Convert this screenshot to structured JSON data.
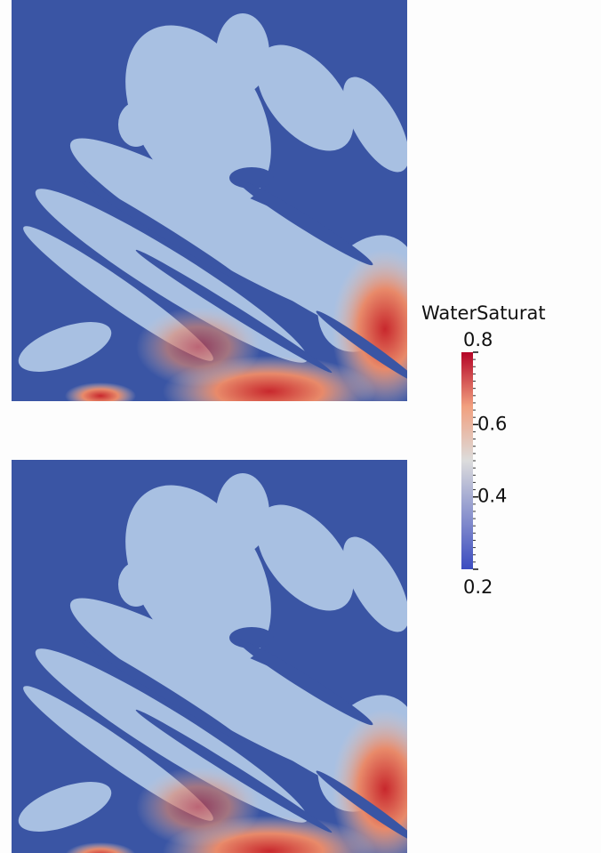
{
  "colorbar": {
    "title": "WaterSaturat",
    "range": [
      0.2,
      0.8
    ],
    "ticks": [
      0.2,
      0.4,
      0.6,
      0.8
    ]
  }
}
